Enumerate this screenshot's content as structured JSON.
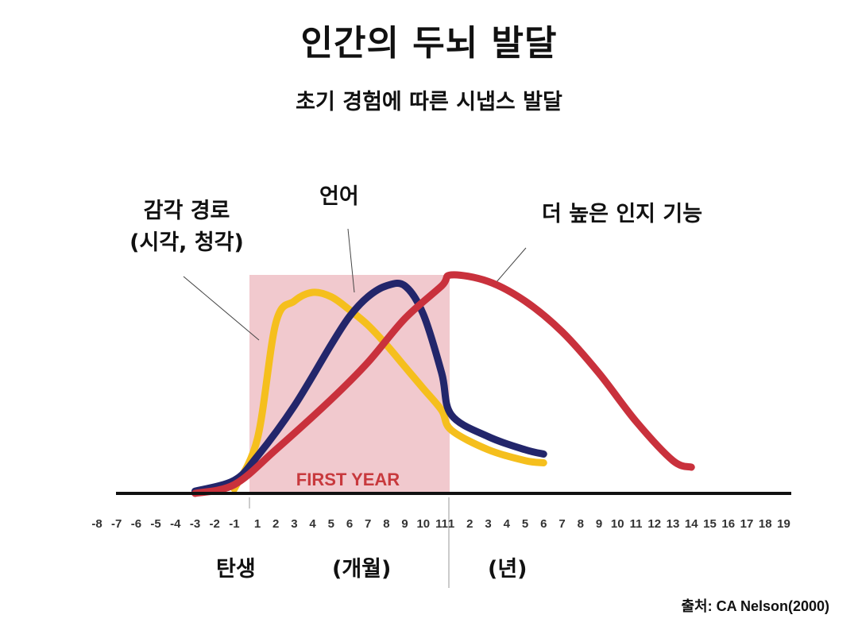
{
  "title": "인간의 두뇌 발달",
  "subtitle": "초기 경험에 따른 시냅스 발달",
  "annotations": {
    "sensory_line1": "감각 경로",
    "sensory_line2": "(시각, 청각)",
    "language": "언어",
    "cognitive": "더 높은 인지 기능"
  },
  "periods": {
    "birth": "탄생",
    "months": "(개월)",
    "years": "(년)"
  },
  "first_year_label": "FIRST YEAR",
  "source": "출처: CA Nelson(2000)",
  "colors": {
    "sensory": "#f5bf1d",
    "language": "#23266b",
    "cognitive": "#c9313c",
    "first_year_band": "#f1c9ce",
    "axis": "#111111"
  },
  "chart_data": {
    "type": "line",
    "title": "인간의 두뇌 발달",
    "subtitle": "초기 경험에 따른 시냅스 발달",
    "x_tick_labels": {
      "prenatal": [
        "-8",
        "-7",
        "-6",
        "-5",
        "-4",
        "-3",
        "-2",
        "-1"
      ],
      "months": [
        "1",
        "2",
        "3",
        "4",
        "5",
        "6",
        "7",
        "8",
        "9",
        "10",
        "11"
      ],
      "years": [
        "1",
        "2",
        "3",
        "4",
        "5",
        "6",
        "7",
        "8",
        "9",
        "10",
        "11",
        "12",
        "13",
        "14",
        "15",
        "16",
        "17",
        "18",
        "19"
      ]
    },
    "highlight": {
      "label": "FIRST YEAR",
      "from": "1 (month)",
      "to": "1 (year)"
    },
    "y_axis": "relative synapse formation (unlabeled)",
    "series": [
      {
        "name": "감각 경로 (시각, 청각)",
        "color": "#f5bf1d",
        "points": [
          {
            "x": "-1",
            "y": 0.02
          },
          {
            "x": "1 (month)",
            "y": 0.25
          },
          {
            "x": "2 (month)",
            "y": 0.78
          },
          {
            "x": "3 (month)",
            "y": 0.88
          },
          {
            "x": "4 (month)",
            "y": 0.92
          },
          {
            "x": "5 (month)",
            "y": 0.9
          },
          {
            "x": "6 (month)",
            "y": 0.84
          },
          {
            "x": "7 (month)",
            "y": 0.77
          },
          {
            "x": "8 (month)",
            "y": 0.68
          },
          {
            "x": "9 (month)",
            "y": 0.58
          },
          {
            "x": "10 (month)",
            "y": 0.48
          },
          {
            "x": "11 (month)",
            "y": 0.38
          },
          {
            "x": "1 (year)",
            "y": 0.29
          },
          {
            "x": "3 (year)",
            "y": 0.2
          },
          {
            "x": "5 (year)",
            "y": 0.15
          },
          {
            "x": "6 (year)",
            "y": 0.14
          }
        ]
      },
      {
        "name": "언어",
        "color": "#23266b",
        "points": [
          {
            "x": "-3",
            "y": 0.01
          },
          {
            "x": "-1",
            "y": 0.06
          },
          {
            "x": "1 (month)",
            "y": 0.17
          },
          {
            "x": "3 (month)",
            "y": 0.4
          },
          {
            "x": "5 (month)",
            "y": 0.68
          },
          {
            "x": "6 (month)",
            "y": 0.81
          },
          {
            "x": "7 (month)",
            "y": 0.9
          },
          {
            "x": "8 (month)",
            "y": 0.95
          },
          {
            "x": "9 (month)",
            "y": 0.95
          },
          {
            "x": "10 (month)",
            "y": 0.82
          },
          {
            "x": "11 (month)",
            "y": 0.55
          },
          {
            "x": "1 (year)",
            "y": 0.36
          },
          {
            "x": "3 (year)",
            "y": 0.26
          },
          {
            "x": "5 (year)",
            "y": 0.2
          },
          {
            "x": "6 (year)",
            "y": 0.18
          }
        ]
      },
      {
        "name": "더 높은 인지 기능",
        "color": "#c9313c",
        "points": [
          {
            "x": "-3",
            "y": 0.0
          },
          {
            "x": "-1",
            "y": 0.04
          },
          {
            "x": "2 (month)",
            "y": 0.2
          },
          {
            "x": "5 (month)",
            "y": 0.43
          },
          {
            "x": "7 (month)",
            "y": 0.6
          },
          {
            "x": "9 (month)",
            "y": 0.8
          },
          {
            "x": "11 (month)",
            "y": 0.95
          },
          {
            "x": "1 (year)",
            "y": 1.0
          },
          {
            "x": "3 (year)",
            "y": 0.97
          },
          {
            "x": "5 (year)",
            "y": 0.88
          },
          {
            "x": "7 (year)",
            "y": 0.74
          },
          {
            "x": "9 (year)",
            "y": 0.55
          },
          {
            "x": "11 (year)",
            "y": 0.33
          },
          {
            "x": "13 (year)",
            "y": 0.15
          },
          {
            "x": "14 (year)",
            "y": 0.12
          }
        ]
      }
    ]
  }
}
